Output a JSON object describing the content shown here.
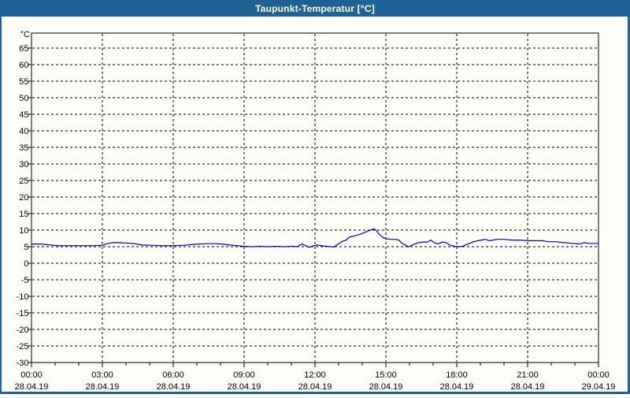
{
  "window": {
    "title": "Taupunkt-Temperatur [°C]",
    "titlebar_color": "#1f6395",
    "background_color": "#fcfdf6"
  },
  "chart_data": {
    "type": "line",
    "title": "Taupunkt-Temperatur [°C]",
    "unit_label": "°C",
    "ylabel": "°C",
    "xlabel": "",
    "grid": true,
    "gridline_style": "dashed",
    "ylim": [
      -30,
      69.5
    ],
    "xlim_hours": [
      0,
      24
    ],
    "line_color": "#0000c8",
    "axis_color": "#000000",
    "yticks": [
      65,
      60,
      55,
      50,
      45,
      40,
      35,
      30,
      25,
      20,
      15,
      10,
      5,
      0,
      -5,
      -10,
      -15,
      -20,
      -25,
      -30
    ],
    "minor_x_tick_every_hours": 1,
    "xticks": [
      {
        "hour": 0,
        "time": "00:00",
        "date": "28.04.19"
      },
      {
        "hour": 3,
        "time": "03:00",
        "date": "28.04.19"
      },
      {
        "hour": 6,
        "time": "06:00",
        "date": "28.04.19"
      },
      {
        "hour": 9,
        "time": "09:00",
        "date": "28.04.19"
      },
      {
        "hour": 12,
        "time": "12:00",
        "date": "28.04.19"
      },
      {
        "hour": 15,
        "time": "15:00",
        "date": "28.04.19"
      },
      {
        "hour": 18,
        "time": "18:00",
        "date": "28.04.19"
      },
      {
        "hour": 21,
        "time": "21:00",
        "date": "28.04.19"
      },
      {
        "hour": 24,
        "time": "00:00",
        "date": "29.04.19"
      }
    ],
    "series": [
      {
        "name": "Taupunkt",
        "x_hours": [
          0.0,
          0.4,
          0.8,
          1.1,
          1.6,
          2.1,
          2.6,
          3.0,
          3.2,
          3.45,
          3.7,
          4.0,
          4.35,
          4.7,
          5.1,
          5.5,
          6.0,
          6.4,
          6.75,
          7.1,
          7.45,
          7.75,
          8.05,
          8.4,
          8.7,
          9.0,
          9.35,
          9.7,
          10.0,
          10.35,
          10.7,
          11.0,
          11.25,
          11.45,
          11.75,
          11.95,
          12.1,
          12.35,
          12.65,
          12.8,
          13.0,
          13.15,
          13.3,
          13.45,
          13.6,
          13.85,
          14.05,
          14.2,
          14.4,
          14.5,
          14.6,
          14.7,
          14.85,
          15.0,
          15.2,
          15.4,
          15.55,
          15.7,
          15.85,
          15.95,
          16.1,
          16.25,
          16.4,
          16.6,
          16.75,
          16.9,
          17.05,
          17.2,
          17.4,
          17.55,
          17.7,
          17.9,
          18.1,
          18.25,
          18.4,
          18.55,
          18.7,
          18.9,
          19.05,
          19.2,
          19.4,
          19.55,
          19.7,
          20.0,
          20.35,
          20.65,
          21.0,
          21.3,
          21.6,
          21.9,
          22.2,
          22.55,
          22.9,
          23.2,
          23.4,
          23.6,
          24.0
        ],
        "values": [
          5.8,
          5.8,
          5.5,
          5.3,
          5.3,
          5.3,
          5.3,
          5.4,
          5.9,
          6.2,
          6.2,
          6.1,
          5.9,
          5.5,
          5.4,
          5.3,
          5.3,
          5.4,
          5.6,
          5.8,
          5.9,
          5.9,
          5.8,
          5.5,
          5.3,
          5.1,
          5.0,
          5.1,
          5.0,
          5.1,
          5.0,
          5.1,
          5.0,
          5.8,
          4.8,
          5.3,
          5.5,
          5.2,
          5.0,
          4.9,
          5.9,
          6.6,
          6.9,
          7.9,
          8.1,
          8.6,
          9.1,
          9.6,
          10.1,
          10.4,
          9.8,
          8.9,
          7.9,
          7.4,
          7.2,
          7.2,
          7.0,
          5.9,
          5.4,
          5.0,
          5.4,
          5.9,
          6.2,
          6.4,
          6.4,
          7.0,
          6.2,
          5.8,
          6.4,
          6.2,
          5.5,
          5.1,
          5.0,
          5.1,
          5.6,
          6.0,
          6.5,
          6.8,
          7.0,
          7.2,
          6.8,
          7.0,
          7.2,
          7.2,
          7.0,
          7.0,
          6.8,
          6.8,
          6.8,
          6.5,
          6.5,
          6.2,
          6.0,
          5.8,
          6.2,
          6.0,
          6.0
        ]
      }
    ]
  }
}
